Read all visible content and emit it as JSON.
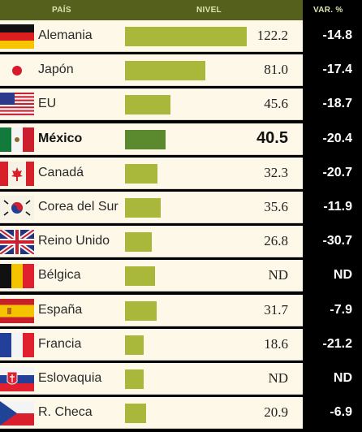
{
  "header": {
    "pais": "PAÍS",
    "nivel": "NIVEL",
    "var": "VAR. %"
  },
  "colors": {
    "bar": "#a9b73a",
    "bar_highlight": "#5b8a2e",
    "header_bg": "#55601c",
    "panel_bg": "#fdf8e8"
  },
  "chart_data": {
    "type": "bar",
    "orientation": "horizontal",
    "categories": [
      "Alemania",
      "Japón",
      "EU",
      "México",
      "Canadá",
      "Corea del Sur",
      "Reino Unido",
      "Bélgica",
      "España",
      "Francia",
      "Eslovaquia",
      "R. Checa"
    ],
    "series": [
      {
        "name": "NIVEL",
        "values": [
          122.2,
          81.0,
          45.6,
          40.5,
          32.3,
          35.6,
          26.8,
          null,
          31.7,
          18.6,
          null,
          20.9
        ]
      },
      {
        "name": "VAR. %",
        "values": [
          -14.8,
          -17.4,
          -18.7,
          -20.4,
          -20.7,
          -11.9,
          -30.7,
          null,
          -7.9,
          -21.2,
          null,
          -6.9
        ]
      }
    ],
    "highlight": "México",
    "xlim": [
      0,
      122.2
    ]
  },
  "rows": [
    {
      "flag": "germany-flag-icon",
      "name": "Alemania",
      "nivel": "122.2",
      "var": "-14.8",
      "value": 122.2,
      "hl": false
    },
    {
      "flag": "japan-flag-icon",
      "name": "Japón",
      "nivel": "81.0",
      "var": "-17.4",
      "value": 81.0,
      "hl": false
    },
    {
      "flag": "usa-flag-icon",
      "name": "EU",
      "nivel": "45.6",
      "var": "-18.7",
      "value": 45.6,
      "hl": false
    },
    {
      "flag": "mexico-flag-icon",
      "name": "México",
      "nivel": "40.5",
      "var": "-20.4",
      "value": 40.5,
      "hl": true
    },
    {
      "flag": "canada-flag-icon",
      "name": "Canadá",
      "nivel": "32.3",
      "var": "-20.7",
      "value": 32.3,
      "hl": false
    },
    {
      "flag": "south-korea-flag-icon",
      "name": "Corea del Sur",
      "nivel": "35.6",
      "var": "-11.9",
      "value": 35.6,
      "hl": false
    },
    {
      "flag": "uk-flag-icon",
      "name": "Reino Unido",
      "nivel": "26.8",
      "var": "-30.7",
      "value": 26.8,
      "hl": false
    },
    {
      "flag": "belgium-flag-icon",
      "name": "Bélgica",
      "nivel": "ND",
      "var": "ND",
      "value": 30.0,
      "hl": false
    },
    {
      "flag": "spain-flag-icon",
      "name": "España",
      "nivel": "31.7",
      "var": "-7.9",
      "value": 31.7,
      "hl": false
    },
    {
      "flag": "france-flag-icon",
      "name": "Francia",
      "nivel": "18.6",
      "var": "-21.2",
      "value": 18.6,
      "hl": false
    },
    {
      "flag": "slovakia-flag-icon",
      "name": "Eslovaquia",
      "nivel": "ND",
      "var": "ND",
      "value": 18.6,
      "hl": false
    },
    {
      "flag": "czech-flag-icon",
      "name": "R. Checa",
      "nivel": "20.9",
      "var": "-6.9",
      "value": 20.9,
      "hl": false
    }
  ]
}
